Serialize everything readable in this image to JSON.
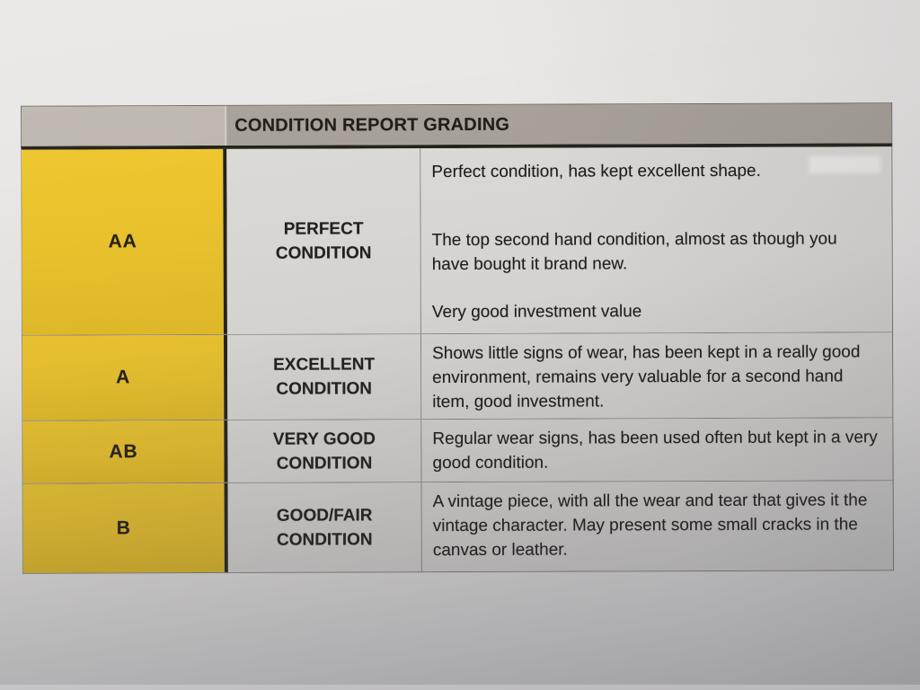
{
  "table": {
    "title": "CONDITION REPORT GRADING",
    "rows": [
      {
        "grade": "AA",
        "label_lines": [
          "PERFECT",
          "CONDITION"
        ],
        "description": [
          "Perfect condition, has kept excellent shape.",
          "The top second hand condition, almost as though you have bought it brand new.",
          "Very good investment value"
        ]
      },
      {
        "grade": "A",
        "label_lines": [
          "EXCELLENT",
          "CONDITION"
        ],
        "description": [
          "Shows little signs of wear, has been kept in a really good environment, remains very valuable for a second hand item, good investment."
        ]
      },
      {
        "grade": "AB",
        "label_lines": [
          "VERY GOOD",
          "CONDITION"
        ],
        "description": [
          "Regular wear signs, has been used often but kept in a very good condition."
        ]
      },
      {
        "grade": "B",
        "label_lines": [
          "GOOD/FAIR",
          "CONDITION"
        ],
        "description": [
          "A vintage piece, with all the wear and tear that gives it the vintage character. May present some small cracks in the canvas or leather."
        ]
      }
    ],
    "colors": {
      "grade_yellow": "#ebc32c",
      "header_gray": "#a8a19a",
      "header_gray_light": "#bdb7af",
      "cell_gray": "#dcdad6",
      "border_dark": "#26221c",
      "border_light": "#8b8781",
      "paper": "#e9e7e5",
      "text": "#1f1d18"
    }
  }
}
